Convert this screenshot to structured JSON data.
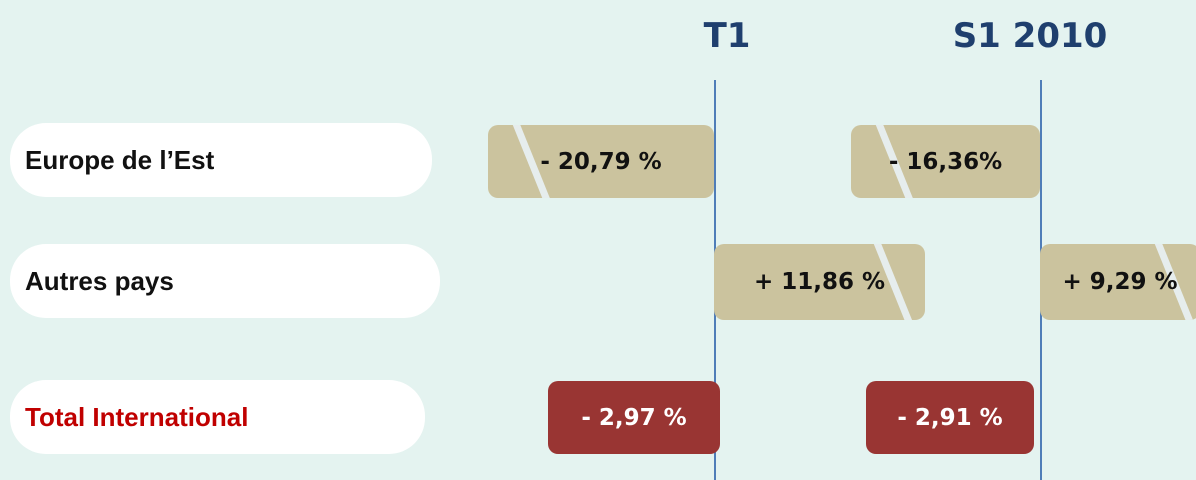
{
  "columns": [
    "T1",
    "S1 2010"
  ],
  "rows": [
    {
      "label": "Europe de l’Est",
      "values": [
        "- 20,79 %",
        "- 16,36%"
      ]
    },
    {
      "label": "Autres pays",
      "values": [
        "+ 11,86 %",
        "+ 9,29 %"
      ]
    },
    {
      "label": "Total International",
      "values": [
        "- 2,97 %",
        "- 2,91 %"
      ]
    }
  ]
}
